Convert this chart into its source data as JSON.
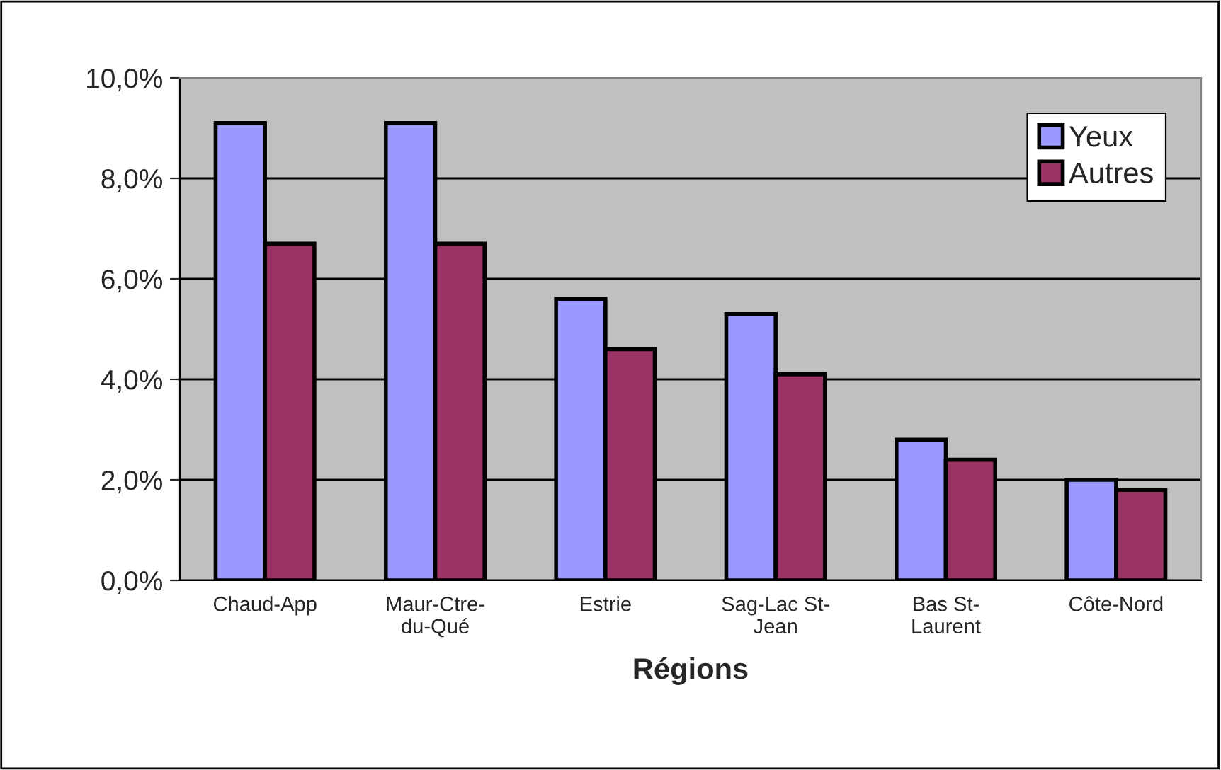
{
  "chart_data": {
    "type": "bar",
    "xlabel": "Régions",
    "categories": [
      "Chaud-App",
      "Maur-Ctre-\ndu-Qué",
      "Estrie",
      "Sag-Lac St-\nJean",
      "Bas St-\nLaurent",
      "Côte-Nord"
    ],
    "series": [
      {
        "name": "Yeux",
        "color": "#9999ff",
        "values": [
          9.1,
          9.1,
          5.6,
          5.3,
          2.8,
          2.0
        ]
      },
      {
        "name": "Autres",
        "color": "#993366",
        "values": [
          6.7,
          6.7,
          4.6,
          4.1,
          2.4,
          1.8
        ]
      }
    ],
    "ylim": [
      0,
      10
    ],
    "yticks": [
      {
        "value": 0,
        "label": "0,0%"
      },
      {
        "value": 2,
        "label": "2,0%"
      },
      {
        "value": 4,
        "label": "4,0%"
      },
      {
        "value": 6,
        "label": "6,0%"
      },
      {
        "value": 8,
        "label": "8,0%"
      },
      {
        "value": 10,
        "label": "10,0%"
      }
    ],
    "grid": "y",
    "legend": "top right"
  }
}
